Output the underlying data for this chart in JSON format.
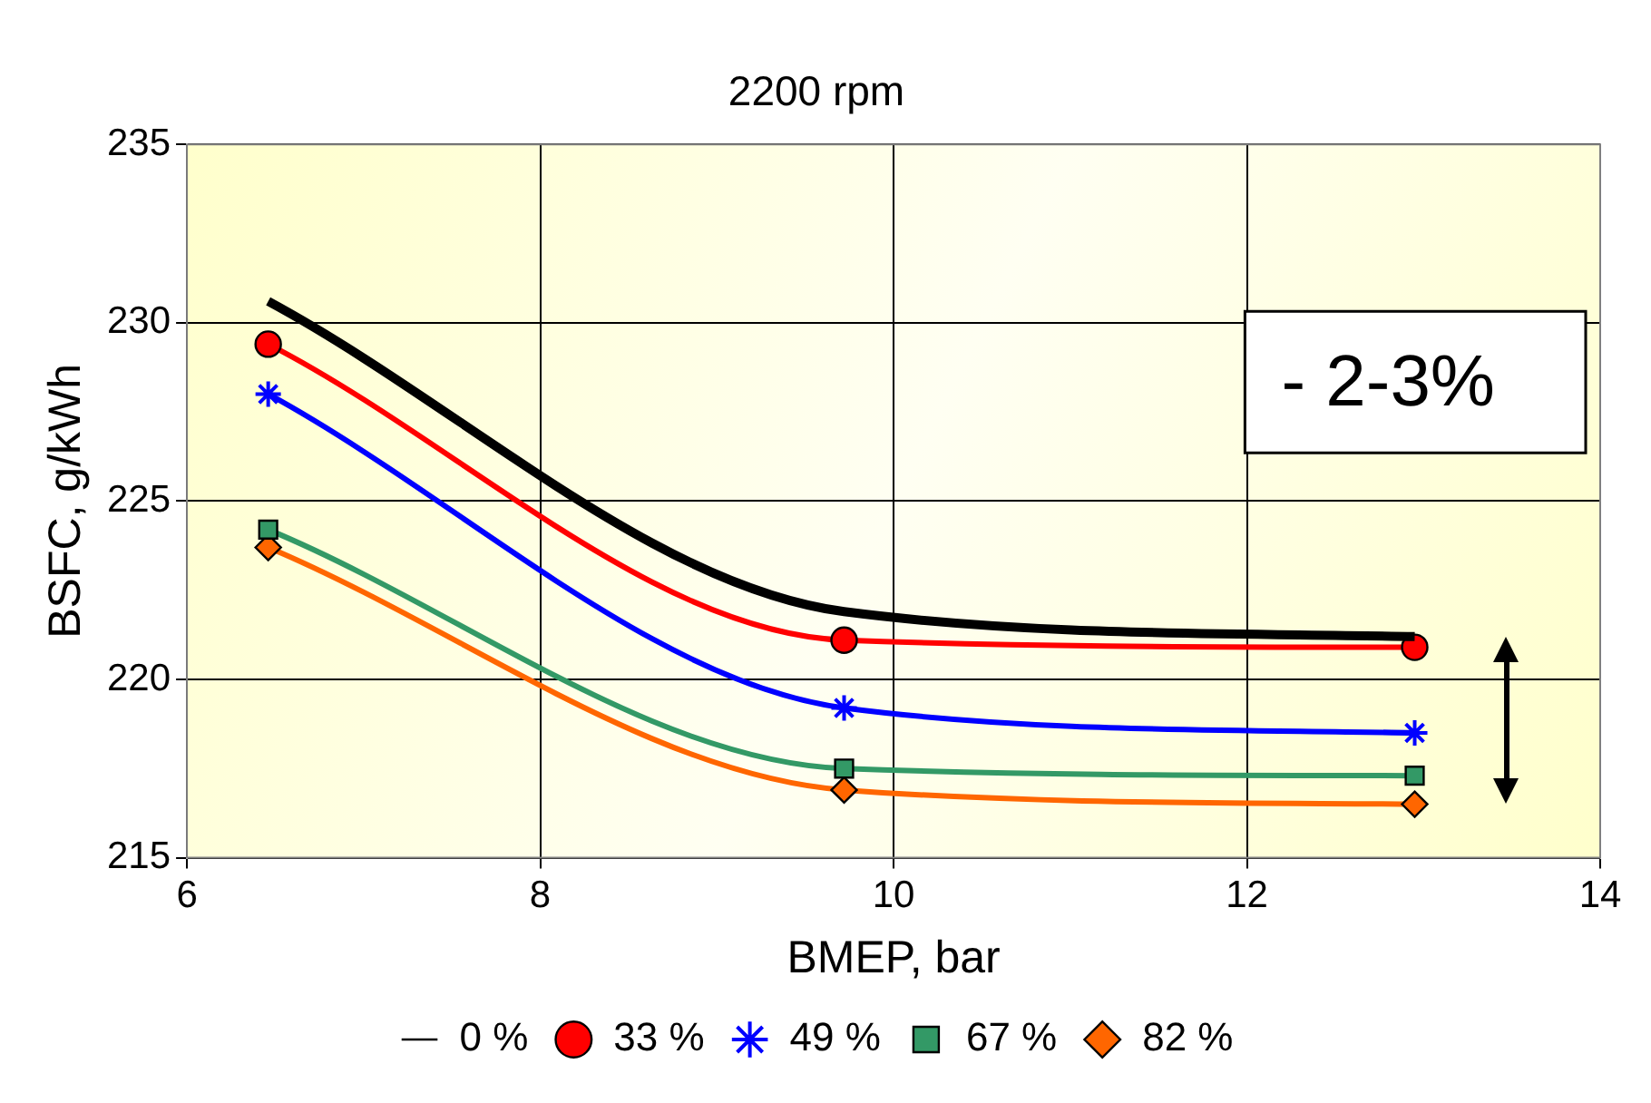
{
  "chart_data": {
    "type": "line",
    "title": "2200 rpm",
    "xlabel": "BMEP, bar",
    "ylabel": "BSFC, g/kWh",
    "x": [
      6.46,
      9.72,
      12.95
    ],
    "series": [
      {
        "name": "0 %",
        "color": "#000000",
        "marker": "none",
        "values": [
          230.6,
          221.9,
          221.2
        ]
      },
      {
        "name": "33 %",
        "color": "#ff0000",
        "marker": "circle",
        "values": [
          229.4,
          221.1,
          220.9
        ]
      },
      {
        "name": "49 %",
        "color": "#0000ff",
        "marker": "cross",
        "values": [
          228.0,
          219.2,
          218.5
        ]
      },
      {
        "name": "67 %",
        "color": "#339966",
        "marker": "square",
        "values": [
          224.2,
          217.5,
          217.3
        ]
      },
      {
        "name": "82 %",
        "color": "#ff6600",
        "marker": "diamond",
        "values": [
          223.7,
          216.9,
          216.5
        ]
      }
    ],
    "xlim": [
      6,
      14
    ],
    "xticks": [
      6,
      8,
      10,
      12,
      14
    ],
    "ylim": [
      215,
      235
    ],
    "yticks": [
      215,
      220,
      225,
      230,
      235
    ],
    "grid": true,
    "legend": "bottom",
    "annotations": [
      "- 2-3%"
    ]
  }
}
